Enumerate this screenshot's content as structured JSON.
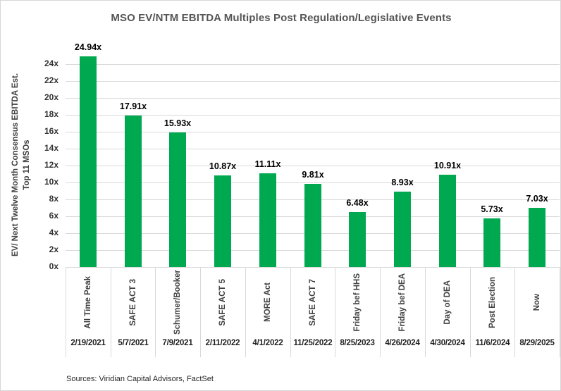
{
  "chart_data": {
    "type": "bar",
    "title": "MSO EV/NTM EBITDA Multiples Post Regulation/Legislative Events",
    "ylabel_line1": "EV/ Next Twelve Month Consensus EBITDA Est.",
    "ylabel_line2": "Top 11 MSOs",
    "xlabel": "",
    "categories": [
      "All Time Peak",
      "SAFE ACT 3",
      "Schumer/Booker",
      "SAFE ACT 5",
      "MORE Act",
      "SAFE ACT 7",
      "Friday bef HHS",
      "Friday bef DEA",
      "Day of DEA",
      "Post Election",
      "Now"
    ],
    "category_dates": [
      "2/19/2021",
      "5/7/2021",
      "7/9/2021",
      "2/11/2022",
      "4/1/2022",
      "11/25/2022",
      "8/25/2023",
      "4/26/2024",
      "4/30/2024",
      "11/6/2024",
      "8/29/2025"
    ],
    "values": [
      24.94,
      17.91,
      15.93,
      10.87,
      11.11,
      9.81,
      6.48,
      8.93,
      10.91,
      5.73,
      7.03
    ],
    "value_labels": [
      "24.94x",
      "17.91x",
      "15.93x",
      "10.87x",
      "11.11x",
      "9.81x",
      "6.48x",
      "8.93x",
      "10.91x",
      "5.73x",
      "7.03x"
    ],
    "ylim": [
      0,
      24
    ],
    "ytick_step": 2,
    "yticks": [
      "0x",
      "2x",
      "4x",
      "6x",
      "8x",
      "10x",
      "12x",
      "14x",
      "16x",
      "18x",
      "20x",
      "22x",
      "24x"
    ],
    "grid": true,
    "legend": "none",
    "bar_color": "#00a84f",
    "gridline_color": "#d9d9d9"
  },
  "source": "Sources: Viridian Capital Advisors, FactSet"
}
